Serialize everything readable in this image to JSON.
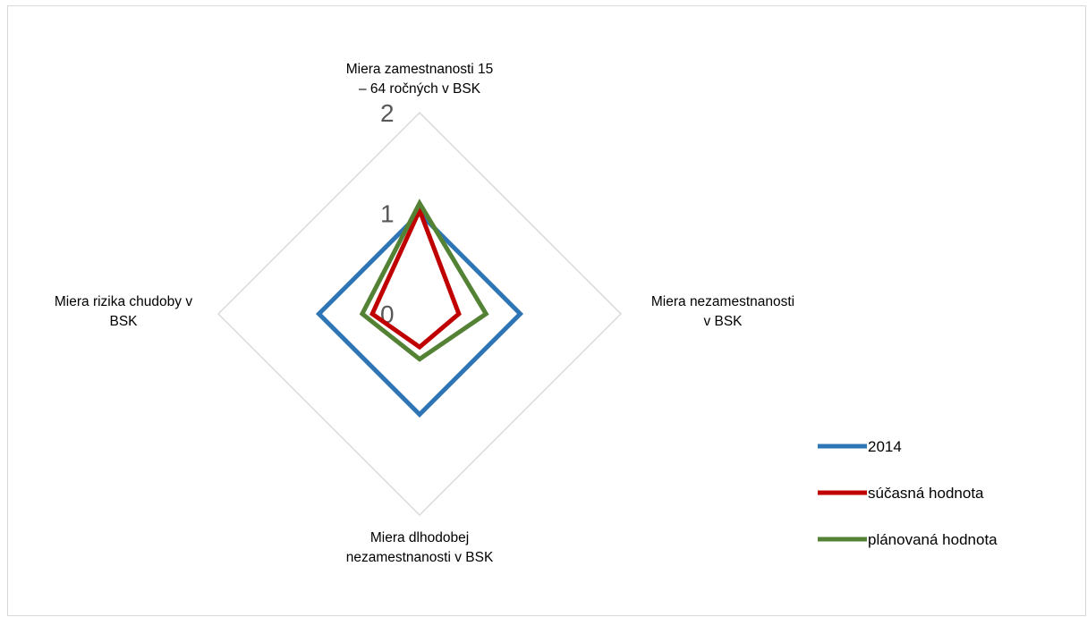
{
  "chart_data": {
    "type": "radar",
    "axes": [
      [
        "Miera zamestnanosti 15",
        "– 64 ročných v BSK"
      ],
      [
        "Miera nezamestnanosti",
        "v BSK"
      ],
      [
        "Miera dlhodobej",
        "nezamestnanosti v BSK"
      ],
      [
        "Miera rizika chudoby v",
        "BSK"
      ]
    ],
    "rlim": [
      0,
      2
    ],
    "ticks": [
      "0",
      "1",
      "2"
    ],
    "grid": true,
    "legend_position": "right",
    "series": [
      {
        "name": "2014",
        "color": "#2e75b6",
        "values": [
          1.0,
          1.0,
          1.0,
          1.0
        ]
      },
      {
        "name": "súčasná hodnota",
        "color": "#c00000",
        "values": [
          1.03,
          0.39,
          0.33,
          0.47
        ]
      },
      {
        "name": "plánovaná hodnota",
        "color": "#548235",
        "values": [
          1.1,
          0.66,
          0.45,
          0.57
        ]
      }
    ]
  }
}
